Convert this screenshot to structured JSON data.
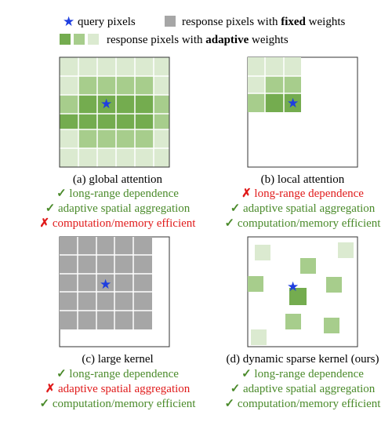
{
  "legend": {
    "query_label": "query pixels",
    "fixed_prefix": "response pixels with ",
    "fixed_bold": "fixed",
    "fixed_suffix": " weights",
    "adaptive_prefix": "response pixels with ",
    "adaptive_bold": "adaptive",
    "adaptive_suffix": " weights"
  },
  "colors": {
    "star": "#1f3fe0",
    "fixed_gray": "#a6a6a6",
    "adaptive_dark": "#74ac4f",
    "adaptive_mid": "#a7cd8c",
    "adaptive_light": "#dbead0",
    "check_text": "#4a8a2a",
    "cross_text": "#e01a1a"
  },
  "panels": [
    {
      "caption": "(a) global attention",
      "properties": [
        {
          "mark": "✓",
          "ok": true,
          "text": "long-range dependence"
        },
        {
          "mark": "✓",
          "ok": true,
          "text": "adaptive spatial aggregation"
        },
        {
          "mark": "✗",
          "ok": false,
          "text": "computation/memory efficient"
        }
      ]
    },
    {
      "caption": "(b) local attention",
      "properties": [
        {
          "mark": "✗",
          "ok": false,
          "text": "long-range dependence"
        },
        {
          "mark": "✓",
          "ok": true,
          "text": "adaptive spatial aggregation"
        },
        {
          "mark": "✓",
          "ok": true,
          "text": "computation/memory efficient"
        }
      ]
    },
    {
      "caption": "(c) large kernel",
      "properties": [
        {
          "mark": "✓",
          "ok": true,
          "text": "long-range dependence"
        },
        {
          "mark": "✗",
          "ok": false,
          "text": "adaptive spatial aggregation"
        },
        {
          "mark": "✓",
          "ok": true,
          "text": "computation/memory efficient"
        }
      ]
    },
    {
      "caption": "(d) dynamic sparse kernel (ours)",
      "properties": [
        {
          "mark": "✓",
          "ok": true,
          "text": "long-range dependence"
        },
        {
          "mark": "✓",
          "ok": true,
          "text": "adaptive spatial aggregation"
        },
        {
          "mark": "✓",
          "ok": true,
          "text": "computation/memory efficient"
        }
      ]
    }
  ],
  "star_glyph": "★"
}
